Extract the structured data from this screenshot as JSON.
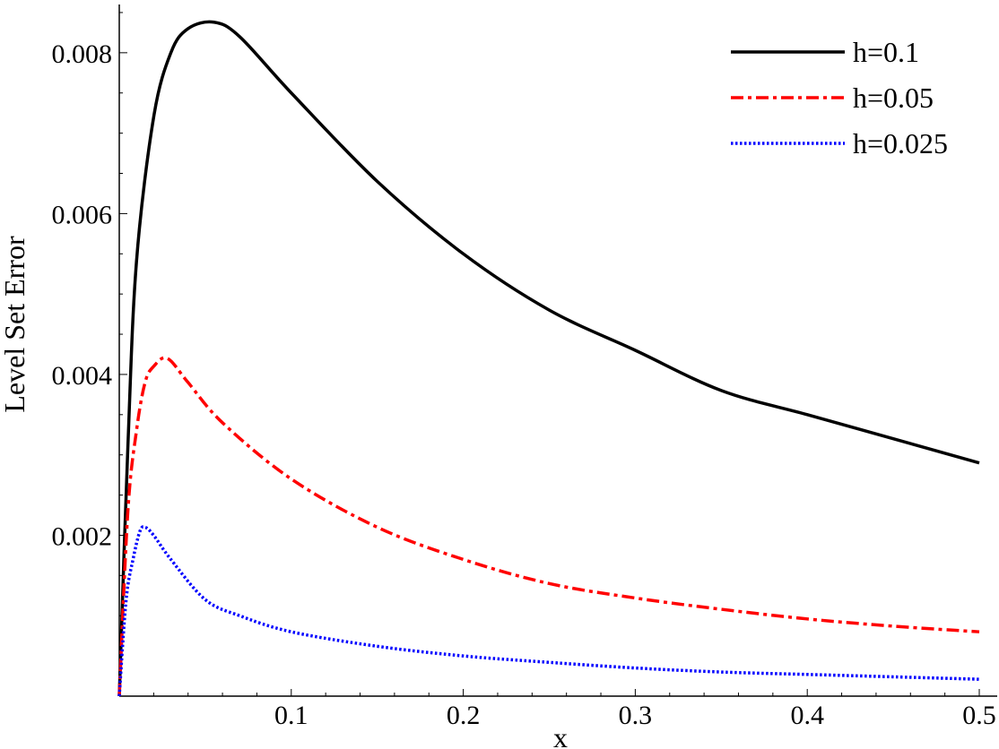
{
  "chart_data": {
    "type": "line",
    "title": "",
    "xlabel": "x",
    "ylabel": "Level Set Error",
    "xlim": [
      0,
      0.5
    ],
    "ylim": [
      0,
      0.0086
    ],
    "x_ticks": [
      0.1,
      0.2,
      0.3,
      0.4,
      0.5
    ],
    "x_tick_labels": [
      "0.1",
      "0.2",
      "0.3",
      "0.4",
      "0.5"
    ],
    "y_ticks": [
      0.002,
      0.004,
      0.006,
      0.008
    ],
    "y_tick_labels": [
      "0.002",
      "0.004",
      "0.006",
      "0.008"
    ],
    "grid": false,
    "legend_position": "top-right",
    "series": [
      {
        "name": "h=0.1",
        "color": "#000000",
        "dash": "solid",
        "points": [
          [
            0,
            0
          ],
          [
            0.005,
            0.0031
          ],
          [
            0.01,
            0.0054
          ],
          [
            0.02,
            0.0072
          ],
          [
            0.03,
            0.008
          ],
          [
            0.04,
            0.0083
          ],
          [
            0.055,
            0.00838
          ],
          [
            0.07,
            0.0082
          ],
          [
            0.1,
            0.0075
          ],
          [
            0.15,
            0.0064
          ],
          [
            0.2,
            0.0055
          ],
          [
            0.25,
            0.0048
          ],
          [
            0.3,
            0.0043
          ],
          [
            0.35,
            0.0038
          ],
          [
            0.4,
            0.0035
          ],
          [
            0.45,
            0.0032
          ],
          [
            0.5,
            0.0029
          ]
        ]
      },
      {
        "name": "h=0.05",
        "color": "#ff0000",
        "dash": "dashdot",
        "points": [
          [
            0,
            0
          ],
          [
            0.005,
            0.0023
          ],
          [
            0.01,
            0.0033
          ],
          [
            0.015,
            0.0039
          ],
          [
            0.02,
            0.0041
          ],
          [
            0.028,
            0.0042
          ],
          [
            0.04,
            0.0039
          ],
          [
            0.06,
            0.0034
          ],
          [
            0.1,
            0.0027
          ],
          [
            0.15,
            0.0021
          ],
          [
            0.2,
            0.0017
          ],
          [
            0.25,
            0.0014
          ],
          [
            0.3,
            0.00122
          ],
          [
            0.35,
            0.00108
          ],
          [
            0.4,
            0.00096
          ],
          [
            0.45,
            0.00087
          ],
          [
            0.5,
            0.0008
          ]
        ]
      },
      {
        "name": "h=0.025",
        "color": "#0000ff",
        "dash": "dotted",
        "points": [
          [
            0,
            0
          ],
          [
            0.004,
            0.0012
          ],
          [
            0.008,
            0.0017
          ],
          [
            0.012,
            0.00205
          ],
          [
            0.015,
            0.0021
          ],
          [
            0.02,
            0.002
          ],
          [
            0.03,
            0.0017
          ],
          [
            0.05,
            0.0012
          ],
          [
            0.07,
            0.001
          ],
          [
            0.1,
            0.0008
          ],
          [
            0.15,
            0.00062
          ],
          [
            0.2,
            0.0005
          ],
          [
            0.25,
            0.00042
          ],
          [
            0.3,
            0.00035
          ],
          [
            0.35,
            0.0003
          ],
          [
            0.4,
            0.00027
          ],
          [
            0.45,
            0.00024
          ],
          [
            0.5,
            0.00021
          ]
        ]
      }
    ]
  }
}
